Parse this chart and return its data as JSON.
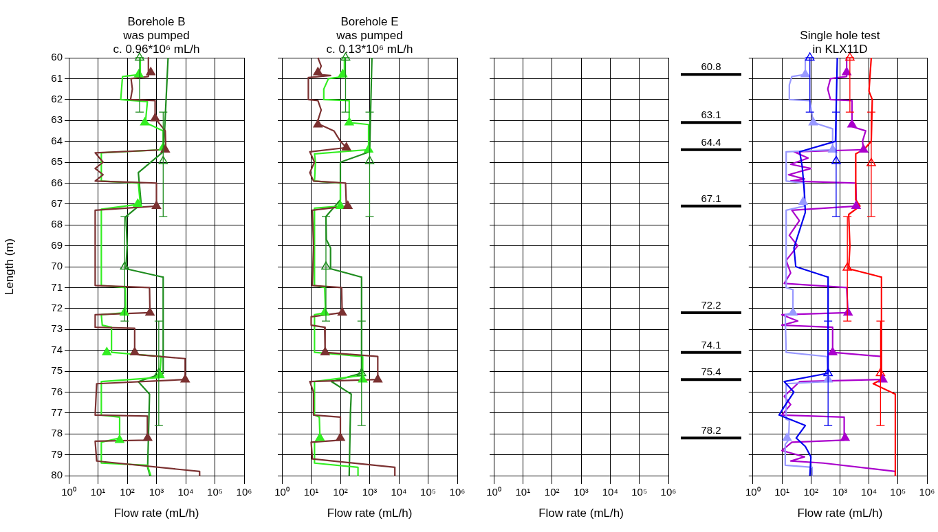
{
  "chart_data": [
    {
      "type": "line",
      "title": "Borehole B\nwas pumped\nc. 0.96*10⁶ mL/h",
      "xlabel": "Flow rate (mL/h)",
      "ylabel": "Length (m)",
      "log": "x",
      "grid": true,
      "legend": false,
      "xlim": [
        1,
        1000000
      ],
      "ylim": [
        80,
        60
      ],
      "xticks": [
        {
          "value": 1,
          "label": "10⁰"
        },
        {
          "value": 10,
          "label": "10¹"
        },
        {
          "value": 100,
          "label": "10²"
        },
        {
          "value": 1000,
          "label": "10³"
        },
        {
          "value": 10000,
          "label": "10⁴"
        },
        {
          "value": 100000,
          "label": "10⁵"
        },
        {
          "value": 1000000,
          "label": "10⁶"
        }
      ],
      "yticks": [
        60,
        61,
        62,
        63,
        64,
        65,
        66,
        67,
        68,
        69,
        70,
        71,
        72,
        73,
        74,
        75,
        76,
        77,
        78,
        79,
        80
      ],
      "series": [
        {
          "type": "line",
          "marker": "none",
          "color": "#7b3131",
          "x": [
            530,
            530,
            135,
            150,
            130,
            900,
            900,
            2000,
            2100,
            8,
            15,
            8,
            15,
            8,
            1000,
            1000,
            8,
            8,
            580,
            600,
            8,
            8,
            180,
            180,
            9600,
            9600,
            9,
            8,
            490,
            490,
            8,
            9,
            30000,
            30000
          ],
          "values": [
            60,
            60.9,
            61,
            61.5,
            62,
            62.05,
            62.9,
            63.5,
            64.4,
            64.55,
            65,
            65.3,
            65.6,
            65.9,
            66,
            67.1,
            67.3,
            70.9,
            71,
            72.2,
            72.3,
            72.9,
            72.95,
            74.2,
            74.4,
            75.4,
            75.6,
            77.1,
            77.15,
            78.3,
            78.35,
            79.3,
            79.8,
            80
          ]
        },
        {
          "type": "line",
          "marker": "none",
          "color": "#33ee22",
          "x": [
            280,
            280,
            69,
            60,
            490,
            420,
            1700,
            1700,
            13,
            13,
            240,
            280,
            13,
            13,
            87,
            90,
            13,
            14,
            29,
            29,
            1450,
            1300,
            13,
            13,
            55,
            55,
            13,
            13,
            490,
            640
          ],
          "values": [
            60,
            60.8,
            60.9,
            62,
            62.1,
            63.1,
            63.5,
            64.4,
            64.55,
            65.9,
            66,
            67,
            67.25,
            70.9,
            71,
            72.2,
            72.3,
            72.8,
            72.9,
            74.1,
            74.3,
            75.3,
            75.5,
            77.1,
            77.2,
            78.2,
            78.4,
            79.4,
            79.5,
            80
          ]
        },
        {
          "type": "line",
          "marker": "none",
          "color": "#1e8c1e",
          "x": [
            2500,
            1900,
            1700,
            240,
            300,
            90,
            100,
            90,
            1700,
            1700,
            240,
            580,
            500,
            600
          ],
          "values": [
            60,
            63.5,
            64.5,
            65.5,
            67,
            67.6,
            69,
            70.1,
            70.5,
            75.1,
            75.5,
            76.1,
            79.6,
            80
          ]
        },
        {
          "type": "scatter",
          "marker": "triangle",
          "color": "#7b3131",
          "x": [
            640,
            900,
            2000,
            1000,
            600,
            180,
            9600,
            500
          ],
          "values": [
            60.7,
            62.9,
            64.4,
            67.1,
            72.2,
            74.1,
            75.4,
            78.2
          ]
        },
        {
          "type": "scatter",
          "marker": "triangle",
          "color": "#33ee22",
          "x": [
            250,
            400,
            1700,
            230,
            80,
            20,
            1300,
            55
          ],
          "values": [
            60.8,
            63.1,
            64.3,
            67,
            72.2,
            74.1,
            75.2,
            78.3
          ]
        },
        {
          "type": "scatter",
          "marker": "triangle",
          "color": "#1e8c1e",
          "x": [
            265,
            1700,
            82,
            1200
          ],
          "values": [
            60,
            64.95,
            70,
            75.1
          ],
          "errors": [
            [
              60,
              62.6
            ],
            [
              62.6,
              67.6
            ],
            [
              67.6,
              72.6
            ],
            [
              72.6,
              77.6
            ]
          ]
        }
      ]
    },
    {
      "type": "line",
      "title": "Borehole E\nwas pumped\nc. 0.13*10⁶ mL/h",
      "xlabel": "Flow rate (mL/h)",
      "log": "x",
      "grid": true,
      "legend": false,
      "tick_labels": "x",
      "xlim": [
        1,
        1000000
      ],
      "ylim": [
        80,
        60
      ],
      "xticks": [
        {
          "value": 1,
          "label": "10⁰"
        },
        {
          "value": 10,
          "label": "10¹"
        },
        {
          "value": 100,
          "label": "10²"
        },
        {
          "value": 1000,
          "label": "10³"
        },
        {
          "value": 10000,
          "label": "10⁴"
        },
        {
          "value": 100000,
          "label": "10⁵"
        },
        {
          "value": 1000000,
          "label": "10⁶"
        }
      ],
      "yticks": [
        60,
        61,
        62,
        63,
        64,
        65,
        66,
        67,
        68,
        69,
        70,
        71,
        72,
        73,
        74,
        75,
        76,
        77,
        78,
        79,
        80
      ],
      "series": [
        {
          "type": "line",
          "marker": "none",
          "color": "#7b3131",
          "x": [
            17,
            22,
            17,
            46,
            8,
            8,
            17,
            22,
            17,
            20,
            60,
            100,
            160,
            9,
            13,
            9,
            12,
            150,
            160,
            11,
            12,
            11,
            110,
            115,
            10,
            10,
            29,
            30,
            1900,
            1900,
            9,
            12,
            12,
            100,
            100,
            10,
            11,
            7300,
            7300
          ],
          "values": [
            60,
            60.4,
            60.8,
            60.85,
            60.95,
            62,
            62.05,
            62.5,
            63,
            63.2,
            63.5,
            64,
            64.3,
            64.5,
            65,
            65.5,
            65.9,
            66,
            67.1,
            67.3,
            69,
            70.9,
            71,
            72.2,
            72.4,
            72.8,
            72.9,
            74.1,
            74.3,
            75.4,
            75.5,
            76,
            77.1,
            77.2,
            78.3,
            78.4,
            79.2,
            79.6,
            80
          ]
        },
        {
          "type": "line",
          "marker": "none",
          "color": "#33ee22",
          "x": [
            137,
            137,
            39,
            27,
            27,
            200,
            200,
            920,
            920,
            13,
            14,
            13,
            100,
            100,
            13,
            13,
            29,
            31,
            13,
            13,
            580,
            580,
            13,
            13,
            19,
            20,
            13,
            13,
            400,
            400
          ],
          "values": [
            60,
            60.9,
            61,
            61.5,
            62,
            62.05,
            63.1,
            63.2,
            64.4,
            64.6,
            65,
            65.9,
            66,
            67.1,
            67.2,
            70.9,
            71,
            72.2,
            72.3,
            74.1,
            74.3,
            75.2,
            75.5,
            77.1,
            77.2,
            78.2,
            78.4,
            79.4,
            79.6,
            80
          ]
        },
        {
          "type": "line",
          "marker": "none",
          "color": "#1e8c1e",
          "x": [
            1200,
            1000,
            100,
            100,
            32,
            33,
            46,
            46,
            530,
            530,
            50,
            235,
            220,
            200
          ],
          "values": [
            60,
            64.5,
            65,
            66.8,
            67.6,
            68.7,
            69.1,
            70.1,
            70.5,
            75.1,
            75.5,
            76.1,
            77,
            80
          ]
        },
        {
          "type": "scatter",
          "marker": "triangle",
          "color": "#7b3131",
          "x": [
            17,
            17,
            160,
            180,
            115,
            30,
            1900,
            100
          ],
          "values": [
            60.7,
            63.2,
            64.3,
            67.1,
            72.2,
            74.1,
            75.4,
            78.2
          ]
        },
        {
          "type": "scatter",
          "marker": "triangle",
          "color": "#33ee22",
          "x": [
            120,
            200,
            920,
            100,
            29,
            580,
            20
          ],
          "values": [
            60.8,
            63.1,
            64.4,
            67.1,
            72.2,
            75.4,
            78.2
          ]
        },
        {
          "type": "scatter",
          "marker": "triangle",
          "color": "#1e8c1e",
          "x": [
            150,
            1000,
            32,
            530
          ],
          "values": [
            60,
            64.95,
            70,
            75.1
          ],
          "errors": [
            [
              60,
              62.6
            ],
            [
              62.6,
              67.6
            ],
            [
              67.6,
              72.6
            ],
            [
              72.6,
              77.6
            ]
          ]
        }
      ]
    },
    {
      "type": "line",
      "xlabel": "Flow rate (mL/h)",
      "log": "x",
      "grid": true,
      "legend": false,
      "tick_labels": "x",
      "xlim": [
        1,
        1000000
      ],
      "ylim": [
        80,
        60
      ],
      "xticks": [
        {
          "value": 1,
          "label": "10⁰"
        },
        {
          "value": 10,
          "label": "10¹"
        },
        {
          "value": 100,
          "label": "10²"
        },
        {
          "value": 1000,
          "label": "10³"
        },
        {
          "value": 10000,
          "label": "10⁴"
        },
        {
          "value": 100000,
          "label": "10⁵"
        },
        {
          "value": 1000000,
          "label": "10⁶"
        }
      ],
      "yticks": [
        60,
        61,
        62,
        63,
        64,
        65,
        66,
        67,
        68,
        69,
        70,
        71,
        72,
        73,
        74,
        75,
        76,
        77,
        78,
        79,
        80
      ],
      "ref_lines": [
        {
          "axis": "y",
          "value": 60.8,
          "label": "60.8",
          "color": "#000000"
        },
        {
          "axis": "y",
          "value": 63.1,
          "label": "63.1",
          "color": "#000000"
        },
        {
          "axis": "y",
          "value": 64.4,
          "label": "64.4",
          "color": "#000000"
        },
        {
          "axis": "y",
          "value": 67.1,
          "label": "67.1",
          "color": "#000000"
        },
        {
          "axis": "y",
          "value": 72.2,
          "label": "72.2",
          "color": "#000000"
        },
        {
          "axis": "y",
          "value": 74.1,
          "label": "74.1",
          "color": "#000000"
        },
        {
          "axis": "y",
          "value": 75.4,
          "label": "75.4",
          "color": "#000000"
        },
        {
          "axis": "y",
          "value": 78.2,
          "label": "78.2",
          "color": "#000000"
        }
      ]
    },
    {
      "type": "line",
      "title": "Single hole test\nin KLX11D",
      "xlabel": "Flow rate (mL/h)",
      "log": "x",
      "grid": true,
      "legend": false,
      "tick_labels": "x",
      "xlim": [
        1,
        1000000
      ],
      "ylim": [
        80,
        60
      ],
      "xticks": [
        {
          "value": 1,
          "label": "10⁰"
        },
        {
          "value": 10,
          "label": "10¹"
        },
        {
          "value": 100,
          "label": "10²"
        },
        {
          "value": 1000,
          "label": "10³"
        },
        {
          "value": 10000,
          "label": "10⁴"
        },
        {
          "value": 100000,
          "label": "10⁵"
        },
        {
          "value": 1000000,
          "label": "10⁶"
        }
      ],
      "yticks": [
        60,
        61,
        62,
        63,
        64,
        65,
        66,
        67,
        68,
        69,
        70,
        71,
        72,
        73,
        74,
        75,
        76,
        77,
        78,
        79,
        80
      ],
      "series": [
        {
          "type": "line",
          "marker": "none",
          "color": "#ff0000",
          "x": [
            12000,
            10000,
            13000,
            12000,
            6700,
            3500,
            3500,
            4900,
            2000,
            2200,
            2000,
            27000,
            27000,
            14000,
            81000,
            81000
          ],
          "values": [
            60,
            61.6,
            62,
            64,
            64.4,
            64.6,
            66.8,
            67.1,
            67.5,
            69,
            70.1,
            70.5,
            75.4,
            75.6,
            76.1,
            80
          ]
        },
        {
          "type": "line",
          "marker": "none",
          "color": "#0000ee",
          "x": [
            810,
            700,
            41,
            50,
            60,
            64,
            26,
            30,
            390,
            390,
            12,
            26,
            12,
            8,
            64,
            31,
            64,
            100,
            92
          ],
          "values": [
            60,
            64,
            64.5,
            65.2,
            66.5,
            67.4,
            69.1,
            70,
            70.5,
            75.1,
            75.5,
            76,
            76.7,
            77.1,
            77.6,
            78.2,
            78.6,
            79.1,
            80
          ]
        },
        {
          "type": "line",
          "marker": "none",
          "color": "#9999ff",
          "x": [
            64,
            64,
            22,
            18,
            18,
            92,
            120,
            560,
            560,
            14,
            14,
            59,
            59,
            14,
            14,
            24,
            24,
            13,
            14,
            360,
            380,
            14,
            14,
            18,
            17,
            13,
            13,
            110,
            110
          ],
          "values": [
            60,
            60.8,
            60.9,
            61.3,
            62,
            62.05,
            63.1,
            63.4,
            64.4,
            64.5,
            65.9,
            66,
            67.1,
            67.3,
            71,
            71.1,
            72.2,
            72.3,
            74.1,
            74.3,
            75.5,
            75.6,
            77.3,
            77.35,
            78.3,
            78.5,
            79.5,
            79.6,
            80
          ]
        },
        {
          "type": "line",
          "marker": "none",
          "color": "#aa00cc",
          "x": [
            1700,
            1700,
            470,
            380,
            470,
            2600,
            2600,
            7700,
            6000,
            6500,
            26,
            80,
            20,
            100,
            17,
            60,
            20,
            3500,
            3700,
            22,
            40,
            18,
            35,
            14,
            20,
            12,
            1700,
            1900,
            10,
            35,
            10,
            560,
            560,
            27000,
            27000,
            41,
            12,
            20,
            10,
            1400,
            1400,
            22,
            10,
            60,
            20,
            270,
            81000,
            81000
          ],
          "values": [
            60,
            60.9,
            61,
            61.5,
            62,
            62.05,
            63.3,
            63.5,
            64,
            64.4,
            64.5,
            64.8,
            65.1,
            65.3,
            65.6,
            65.8,
            65.9,
            66,
            67.1,
            67.3,
            67.8,
            68.5,
            69,
            69.7,
            70.3,
            70.8,
            71,
            72.2,
            72.3,
            72.6,
            72.8,
            72.9,
            74.1,
            74.3,
            75.4,
            75.5,
            76.2,
            76.6,
            77.1,
            77.2,
            78.3,
            78.4,
            78.8,
            79.1,
            79.3,
            79.4,
            79.8,
            80
          ]
        },
        {
          "type": "scatter",
          "marker": "triangle",
          "color": "#9999ff",
          "x": [
            64,
            120,
            560,
            54,
            24,
            390,
            15
          ],
          "values": [
            60.8,
            63.1,
            64.4,
            66.9,
            72.2,
            75.4,
            78.2
          ]
        },
        {
          "type": "scatter",
          "marker": "triangle",
          "color": "#aa00cc",
          "x": [
            1700,
            2600,
            6500,
            3600,
            1900,
            560,
            30000,
            1500
          ],
          "values": [
            60.7,
            63.2,
            64.4,
            67.1,
            72.2,
            74.1,
            75.4,
            78.2
          ]
        },
        {
          "type": "scatter",
          "marker": "triangle",
          "color": "#0000ee",
          "x": [
            92,
            740,
            390
          ],
          "values": [
            60,
            64.95,
            75.1
          ],
          "errors": [
            [
              60,
              62.6
            ],
            [
              62.6,
              67.6
            ],
            [
              72.6,
              77.6
            ]
          ]
        },
        {
          "type": "scatter",
          "marker": "triangle",
          "color": "#ff0000",
          "x": [
            2200,
            12000,
            1800,
            25000
          ],
          "values": [
            60,
            65.05,
            70.05,
            75.1
          ],
          "errors": [
            [
              60,
              62.6
            ],
            [
              62.6,
              67.6
            ],
            [
              67.6,
              72.6
            ],
            [
              72.6,
              77.6
            ]
          ]
        }
      ]
    }
  ]
}
